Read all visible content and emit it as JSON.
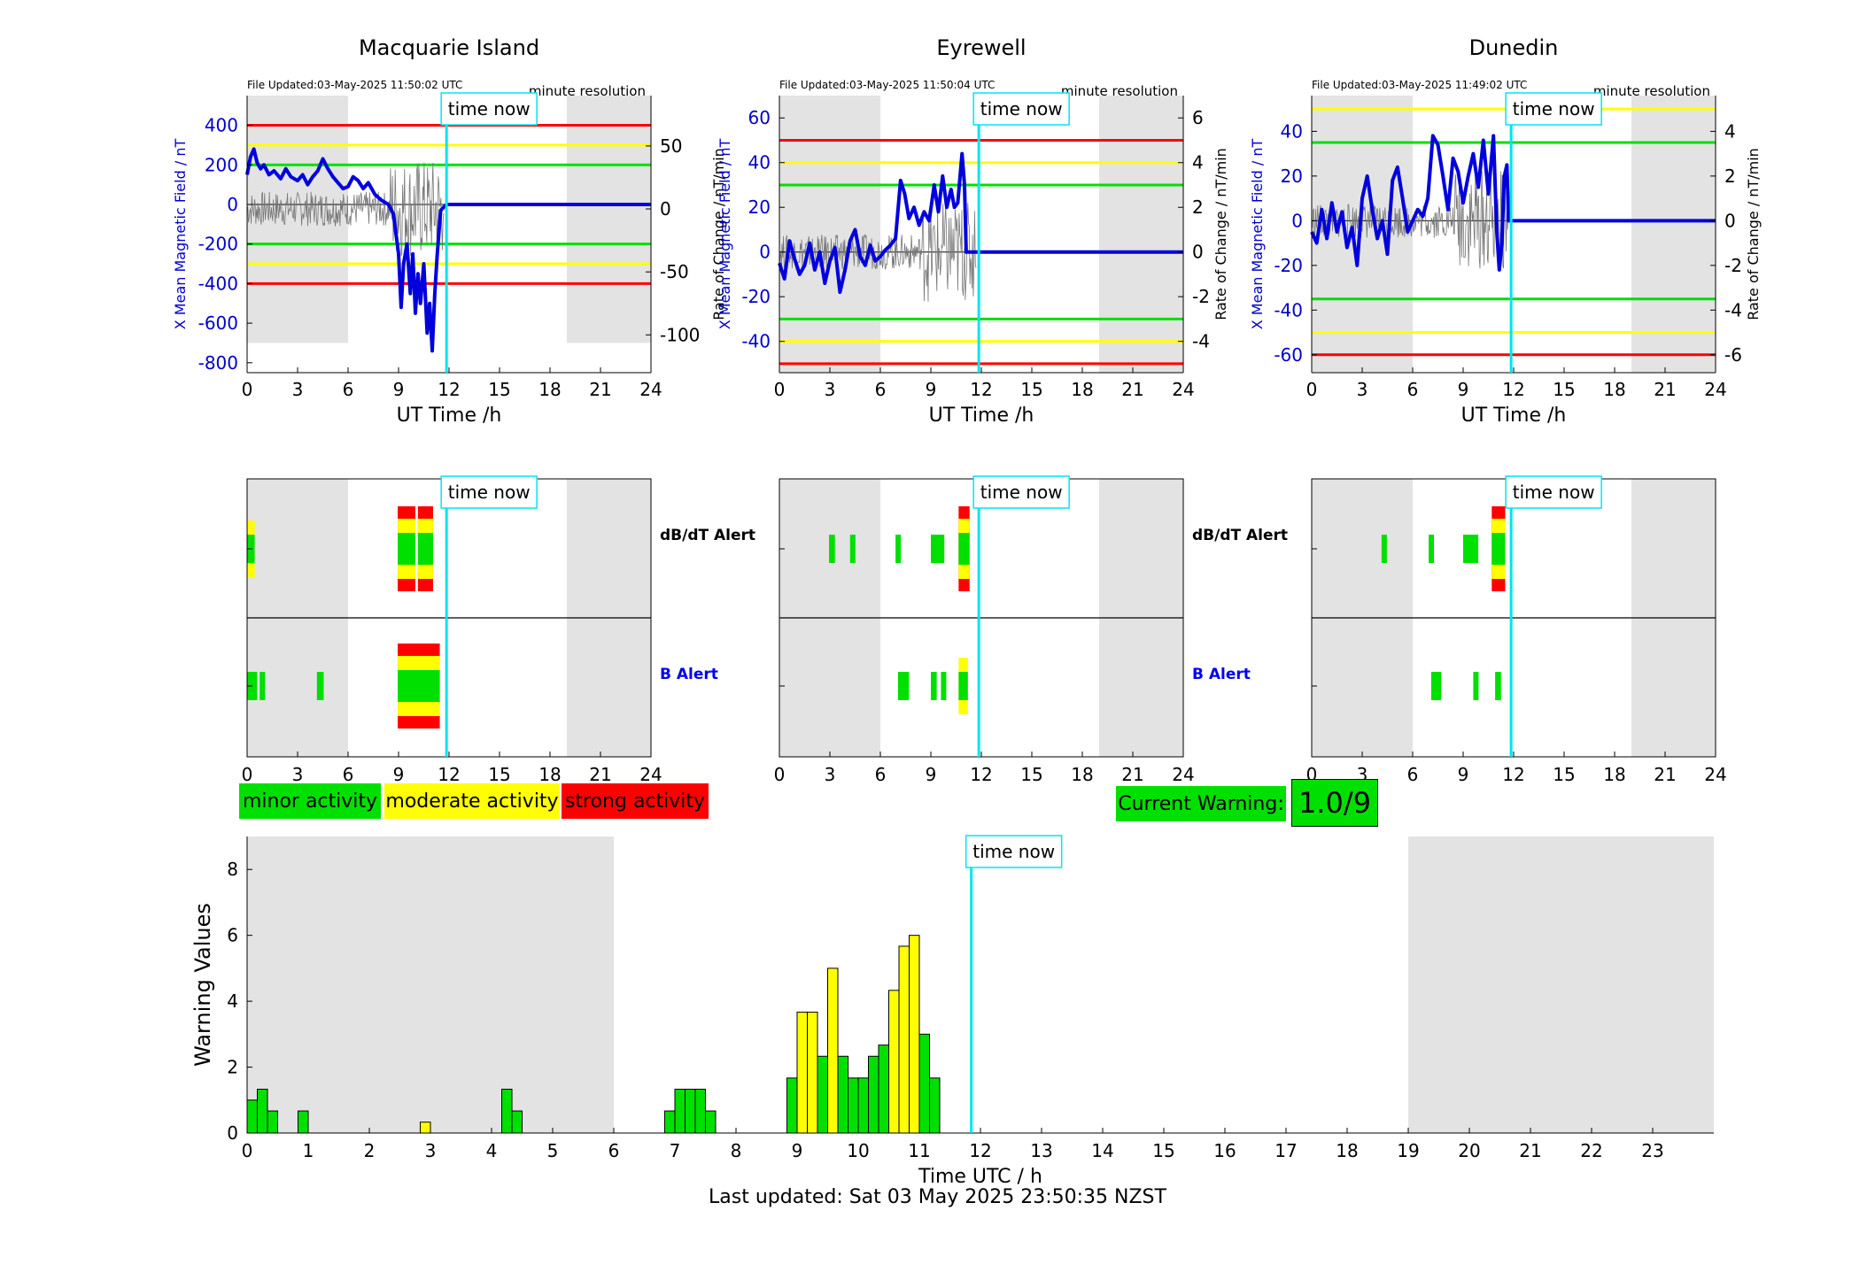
{
  "colors": {
    "minor": "#00e000",
    "moderate": "#ffff00",
    "strong": "#ff0000",
    "time_now": "#00e5ee",
    "shade": "#e3e3e3",
    "field_line": "#0000dd"
  },
  "legend": {
    "minor": "minor activity",
    "moderate": "moderate activity",
    "strong": "strong activity"
  },
  "current_warning": {
    "label": "Current Warning:",
    "value": "1.0/9"
  },
  "footer": "Last updated: Sat 03 May 2025 23:50:35 NZST",
  "time_now_label": "time now",
  "time_now_hour": 11.85,
  "alerts": {
    "dbdt_label": "dB/dT Alert",
    "b_label": "B Alert"
  },
  "stations": [
    {
      "title": "Macquarie Island",
      "updated": "File Updated:03-May-2025 11:50:02 UTC",
      "resolution": "minute resolution",
      "ylabel_left": "X Mean Magnetic Field / nT",
      "ylabel_right": "Rate of Change / nT/min",
      "xlabel": "UT Time /h",
      "xticks": [
        "0",
        "3",
        "6",
        "9",
        "12",
        "15",
        "18",
        "21",
        "24"
      ],
      "ylim": [
        -850,
        550
      ],
      "yticks": [
        400,
        200,
        0,
        -200,
        -400,
        -600,
        -800
      ],
      "rlim": [
        -130,
        90
      ],
      "rticks": [
        50,
        0,
        -50,
        -100
      ],
      "thresholds": {
        "red": 400,
        "yellow": 300,
        "green": 200
      },
      "field": [
        [
          0,
          150
        ],
        [
          0.2,
          240
        ],
        [
          0.4,
          280
        ],
        [
          0.6,
          210
        ],
        [
          0.8,
          180
        ],
        [
          1,
          200
        ],
        [
          1.3,
          150
        ],
        [
          1.6,
          170
        ],
        [
          2,
          130
        ],
        [
          2.3,
          180
        ],
        [
          2.6,
          140
        ],
        [
          3,
          120
        ],
        [
          3.3,
          150
        ],
        [
          3.6,
          100
        ],
        [
          3.9,
          140
        ],
        [
          4.2,
          170
        ],
        [
          4.5,
          230
        ],
        [
          4.8,
          180
        ],
        [
          5.1,
          140
        ],
        [
          5.4,
          110
        ],
        [
          5.7,
          80
        ],
        [
          6,
          90
        ],
        [
          6.3,
          140
        ],
        [
          6.6,
          120
        ],
        [
          6.9,
          80
        ],
        [
          7.2,
          110
        ],
        [
          7.6,
          50
        ],
        [
          8,
          20
        ],
        [
          8.4,
          0
        ],
        [
          8.7,
          -50
        ],
        [
          9,
          -250
        ],
        [
          9.15,
          -520
        ],
        [
          9.3,
          -300
        ],
        [
          9.5,
          -200
        ],
        [
          9.7,
          -450
        ],
        [
          9.85,
          -250
        ],
        [
          10,
          -550
        ],
        [
          10.15,
          -350
        ],
        [
          10.3,
          -500
        ],
        [
          10.5,
          -300
        ],
        [
          10.7,
          -650
        ],
        [
          10.85,
          -500
        ],
        [
          11,
          -740
        ],
        [
          11.15,
          -450
        ],
        [
          11.3,
          -250
        ],
        [
          11.5,
          -30
        ],
        [
          11.85,
          0
        ],
        [
          24,
          0
        ]
      ],
      "dbdt_alert": [
        {
          "h0": 0,
          "h1": 0.45,
          "level": "moderate"
        },
        {
          "h0": 8.95,
          "h1": 10.0,
          "level": "strong"
        },
        {
          "h0": 10.15,
          "h1": 11.05,
          "level": "strong"
        }
      ],
      "b_alert": [
        {
          "h0": 0,
          "h1": 0.6,
          "level": "minor"
        },
        {
          "h0": 0.75,
          "h1": 1.0,
          "level": "minor"
        },
        {
          "h0": 4.15,
          "h1": 4.55,
          "level": "minor"
        },
        {
          "h0": 8.95,
          "h1": 11.45,
          "level": "strong"
        }
      ]
    },
    {
      "title": "Eyrewell",
      "updated": "File Updated:03-May-2025 11:50:04 UTC",
      "resolution": "minute resolution",
      "ylabel_left": "X Mean Magnetic Field / nT",
      "ylabel_right": "Rate of Change / nT/min",
      "xlabel": "UT Time /h",
      "xticks": [
        "0",
        "3",
        "6",
        "9",
        "12",
        "15",
        "18",
        "21",
        "24"
      ],
      "ylim": [
        -54,
        70
      ],
      "yticks": [
        60,
        40,
        20,
        0,
        -20,
        -40
      ],
      "rlim": [
        -5.4,
        7.0
      ],
      "rticks": [
        6,
        4,
        2,
        0,
        -2,
        -4
      ],
      "thresholds": {
        "red": 50,
        "yellow": 40,
        "green": 30
      },
      "field": [
        [
          0,
          -5
        ],
        [
          0.3,
          -12
        ],
        [
          0.6,
          5
        ],
        [
          0.9,
          -3
        ],
        [
          1.2,
          -10
        ],
        [
          1.5,
          -6
        ],
        [
          1.8,
          4
        ],
        [
          2.1,
          -8
        ],
        [
          2.4,
          0
        ],
        [
          2.7,
          -14
        ],
        [
          3,
          -4
        ],
        [
          3.3,
          2
        ],
        [
          3.6,
          -18
        ],
        [
          3.9,
          -8
        ],
        [
          4.2,
          5
        ],
        [
          4.5,
          10
        ],
        [
          4.8,
          -2
        ],
        [
          5.1,
          -6
        ],
        [
          5.4,
          3
        ],
        [
          5.7,
          -4
        ],
        [
          6,
          -2
        ],
        [
          6.3,
          1
        ],
        [
          6.6,
          3
        ],
        [
          6.9,
          6
        ],
        [
          7.2,
          32
        ],
        [
          7.45,
          26
        ],
        [
          7.7,
          15
        ],
        [
          8,
          20
        ],
        [
          8.3,
          12
        ],
        [
          8.6,
          18
        ],
        [
          8.9,
          14
        ],
        [
          9.2,
          30
        ],
        [
          9.45,
          18
        ],
        [
          9.7,
          34
        ],
        [
          9.95,
          20
        ],
        [
          10.2,
          28
        ],
        [
          10.4,
          20
        ],
        [
          10.6,
          22
        ],
        [
          10.85,
          44
        ],
        [
          11.0,
          30
        ],
        [
          11.1,
          0
        ],
        [
          24,
          0
        ]
      ],
      "dbdt_alert": [
        {
          "h0": 2.95,
          "h1": 3.3,
          "level": "minor"
        },
        {
          "h0": 4.2,
          "h1": 4.5,
          "level": "minor"
        },
        {
          "h0": 6.9,
          "h1": 7.2,
          "level": "minor"
        },
        {
          "h0": 9.0,
          "h1": 9.8,
          "level": "minor"
        },
        {
          "h0": 10.65,
          "h1": 11.3,
          "level": "strong"
        }
      ],
      "b_alert": [
        {
          "h0": 7.05,
          "h1": 7.7,
          "level": "minor"
        },
        {
          "h0": 9.0,
          "h1": 9.35,
          "level": "minor"
        },
        {
          "h0": 9.6,
          "h1": 9.85,
          "level": "minor"
        },
        {
          "h0": 10.65,
          "h1": 11.2,
          "level": "moderate"
        }
      ]
    },
    {
      "title": "Dunedin",
      "updated": "File Updated:03-May-2025 11:49:02 UTC",
      "resolution": "minute resolution",
      "ylabel_left": "X Mean Magnetic Field / nT",
      "ylabel_right": "Rate of Change / nT/min",
      "xlabel": "UT Time /h",
      "xticks": [
        "0",
        "3",
        "6",
        "9",
        "12",
        "15",
        "18",
        "21",
        "24"
      ],
      "ylim": [
        -68,
        56
      ],
      "yticks": [
        40,
        20,
        0,
        -20,
        -40,
        -60
      ],
      "rlim": [
        -6.8,
        5.6
      ],
      "rticks": [
        4,
        2,
        0,
        -2,
        -4,
        -6
      ],
      "thresholds": {
        "red": 60,
        "yellow": 50,
        "green": 35
      },
      "field": [
        [
          0,
          -5
        ],
        [
          0.3,
          -10
        ],
        [
          0.6,
          5
        ],
        [
          0.9,
          -8
        ],
        [
          1.2,
          8
        ],
        [
          1.5,
          -5
        ],
        [
          1.8,
          4
        ],
        [
          2.1,
          -12
        ],
        [
          2.4,
          -3
        ],
        [
          2.7,
          -20
        ],
        [
          3,
          10
        ],
        [
          3.3,
          20
        ],
        [
          3.6,
          5
        ],
        [
          3.9,
          -8
        ],
        [
          4.2,
          0
        ],
        [
          4.5,
          -15
        ],
        [
          4.8,
          18
        ],
        [
          5.1,
          24
        ],
        [
          5.4,
          10
        ],
        [
          5.7,
          -5
        ],
        [
          6,
          0
        ],
        [
          6.3,
          5
        ],
        [
          6.6,
          2
        ],
        [
          6.9,
          10
        ],
        [
          7.2,
          38
        ],
        [
          7.5,
          34
        ],
        [
          7.8,
          20
        ],
        [
          8.1,
          5
        ],
        [
          8.4,
          28
        ],
        [
          8.7,
          22
        ],
        [
          9,
          8
        ],
        [
          9.3,
          20
        ],
        [
          9.6,
          30
        ],
        [
          9.9,
          15
        ],
        [
          10.2,
          36
        ],
        [
          10.5,
          12
        ],
        [
          10.8,
          38
        ],
        [
          11.0,
          -5
        ],
        [
          11.15,
          -22
        ],
        [
          11.3,
          -10
        ],
        [
          11.45,
          20
        ],
        [
          11.6,
          25
        ],
        [
          11.7,
          0
        ],
        [
          24,
          0
        ]
      ],
      "dbdt_alert": [
        {
          "h0": 4.15,
          "h1": 4.45,
          "level": "minor"
        },
        {
          "h0": 6.95,
          "h1": 7.25,
          "level": "minor"
        },
        {
          "h0": 9.0,
          "h1": 9.9,
          "level": "minor"
        },
        {
          "h0": 10.7,
          "h1": 11.5,
          "level": "strong"
        }
      ],
      "b_alert": [
        {
          "h0": 7.1,
          "h1": 7.7,
          "level": "minor"
        },
        {
          "h0": 9.6,
          "h1": 9.9,
          "level": "minor"
        },
        {
          "h0": 10.9,
          "h1": 11.25,
          "level": "minor"
        }
      ]
    }
  ],
  "chart_data": {
    "type": "bar",
    "xlabel": "Time UTC / h",
    "ylabel": "Warning Values",
    "xlim": [
      0,
      24
    ],
    "ylim": [
      0,
      9
    ],
    "xticks": [
      "0",
      "1",
      "2",
      "3",
      "4",
      "5",
      "6",
      "7",
      "8",
      "9",
      "10",
      "11",
      "12",
      "13",
      "14",
      "15",
      "16",
      "17",
      "18",
      "19",
      "20",
      "21",
      "22",
      "23"
    ],
    "yticks": [
      0,
      2,
      4,
      6,
      8
    ],
    "bars": [
      {
        "x": 0.0,
        "value": 1.0,
        "level": "minor"
      },
      {
        "x": 0.167,
        "value": 1.33,
        "level": "minor"
      },
      {
        "x": 0.333,
        "value": 0.67,
        "level": "minor"
      },
      {
        "x": 0.833,
        "value": 0.67,
        "level": "minor"
      },
      {
        "x": 2.833,
        "value": 0.33,
        "level": "moderate"
      },
      {
        "x": 4.167,
        "value": 1.33,
        "level": "minor"
      },
      {
        "x": 4.333,
        "value": 0.67,
        "level": "minor"
      },
      {
        "x": 6.833,
        "value": 0.67,
        "level": "minor"
      },
      {
        "x": 7.0,
        "value": 1.33,
        "level": "minor"
      },
      {
        "x": 7.167,
        "value": 1.33,
        "level": "minor"
      },
      {
        "x": 7.333,
        "value": 1.33,
        "level": "minor"
      },
      {
        "x": 7.5,
        "value": 0.67,
        "level": "minor"
      },
      {
        "x": 8.833,
        "value": 1.67,
        "level": "minor"
      },
      {
        "x": 9.0,
        "value": 3.67,
        "level": "moderate"
      },
      {
        "x": 9.167,
        "value": 3.67,
        "level": "moderate"
      },
      {
        "x": 9.333,
        "value": 2.33,
        "level": "minor"
      },
      {
        "x": 9.5,
        "value": 5.0,
        "level": "moderate"
      },
      {
        "x": 9.667,
        "value": 2.33,
        "level": "minor"
      },
      {
        "x": 9.833,
        "value": 1.67,
        "level": "minor"
      },
      {
        "x": 10.0,
        "value": 1.67,
        "level": "minor"
      },
      {
        "x": 10.167,
        "value": 2.33,
        "level": "minor"
      },
      {
        "x": 10.333,
        "value": 2.67,
        "level": "minor"
      },
      {
        "x": 10.5,
        "value": 4.33,
        "level": "moderate"
      },
      {
        "x": 10.667,
        "value": 5.67,
        "level": "moderate"
      },
      {
        "x": 10.833,
        "value": 6.0,
        "level": "moderate"
      },
      {
        "x": 11.0,
        "value": 3.0,
        "level": "minor"
      },
      {
        "x": 11.167,
        "value": 1.67,
        "level": "minor"
      }
    ],
    "shaded_hours": [
      [
        0,
        6
      ],
      [
        19,
        24
      ]
    ],
    "time_now": 11.85
  }
}
